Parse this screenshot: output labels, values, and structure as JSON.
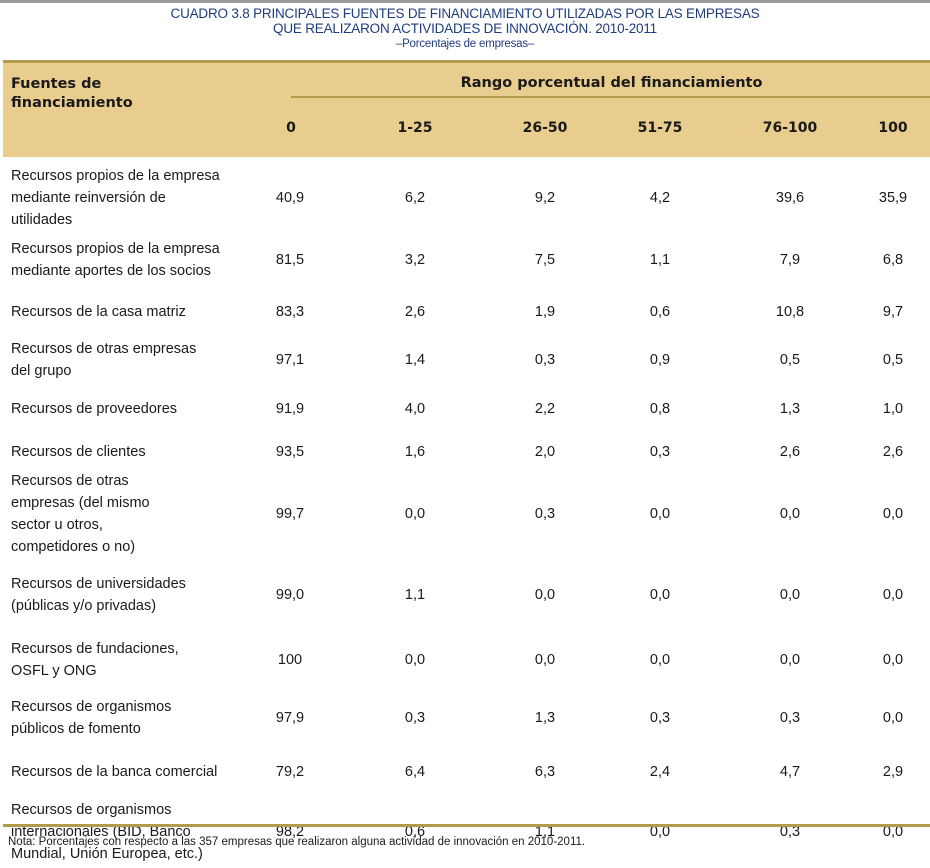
{
  "title": {
    "line1": "CUADRO 3.8 PRINCIPALES FUENTES DE FINANCIAMIENTO UTILIZADAS POR LAS EMPRESAS",
    "line2": "QUE REALIZARON ACTIVIDADES DE INNOVACIÓN. 2010-2011",
    "subtitle": "–Porcentajes de empresas–"
  },
  "header": {
    "row_label": "Fuentes de financiamiento",
    "group_label": "Rango porcentual del financiamiento",
    "columns": [
      "0",
      "1-25",
      "26-50",
      "51-75",
      "76-100",
      "100"
    ]
  },
  "rows": [
    {
      "label": "Recursos propios de la empresa mediante reinversión de utilidades",
      "values": [
        "40,9",
        "6,2",
        "9,2",
        "4,2",
        "39,6",
        "35,9"
      ]
    },
    {
      "label": "Recursos propios de la empresa mediante aportes de los socios",
      "values": [
        "81,5",
        "3,2",
        "7,5",
        "1,1",
        "7,9",
        "6,8"
      ]
    },
    {
      "label": "Recursos de la casa matriz",
      "values": [
        "83,3",
        "2,6",
        "1,9",
        "0,6",
        "10,8",
        "9,7"
      ]
    },
    {
      "label": "Recursos de otras empresas del grupo",
      "values": [
        "97,1",
        "1,4",
        "0,3",
        "0,9",
        "0,5",
        "0,5"
      ]
    },
    {
      "label": "Recursos de proveedores",
      "values": [
        "91,9",
        "4,0",
        "2,2",
        "0,8",
        "1,3",
        "1,0"
      ]
    },
    {
      "label": "Recursos de clientes",
      "values": [
        "93,5",
        "1,6",
        "2,0",
        "0,3",
        "2,6",
        "2,6"
      ]
    },
    {
      "label": "Recursos de otras empresas (del mismo sector u otros, competidores o no)",
      "values": [
        "99,7",
        "0,0",
        "0,3",
        "0,0",
        "0,0",
        "0,0"
      ]
    },
    {
      "label": "Recursos de universidades (públicas y/o privadas)",
      "values": [
        "99,0",
        "1,1",
        "0,0",
        "0,0",
        "0,0",
        "0,0"
      ]
    },
    {
      "label": "Recursos de fundaciones, OSFL y ONG",
      "values": [
        "100",
        "0,0",
        "0,0",
        "0,0",
        "0,0",
        "0,0"
      ]
    },
    {
      "label": "Recursos de organismos públicos de fomento",
      "values": [
        "97,9",
        "0,3",
        "1,3",
        "0,3",
        "0,3",
        "0,0"
      ]
    },
    {
      "label": "Recursos de la banca comercial",
      "values": [
        "79,2",
        "6,4",
        "6,3",
        "2,4",
        "4,7",
        "2,9"
      ]
    },
    {
      "label": "Recursos de organismos internacionales (BID, Banco Mundial, Unión Europea, etc.)",
      "values": [
        "98,2",
        "0,6",
        "1,1",
        "0,0",
        "0,3",
        "0,0"
      ]
    }
  ],
  "note": "Nota: Porcentajes con respecto a las 357 empresas que realizaron alguna actividad de innovación en 2010-2011."
}
